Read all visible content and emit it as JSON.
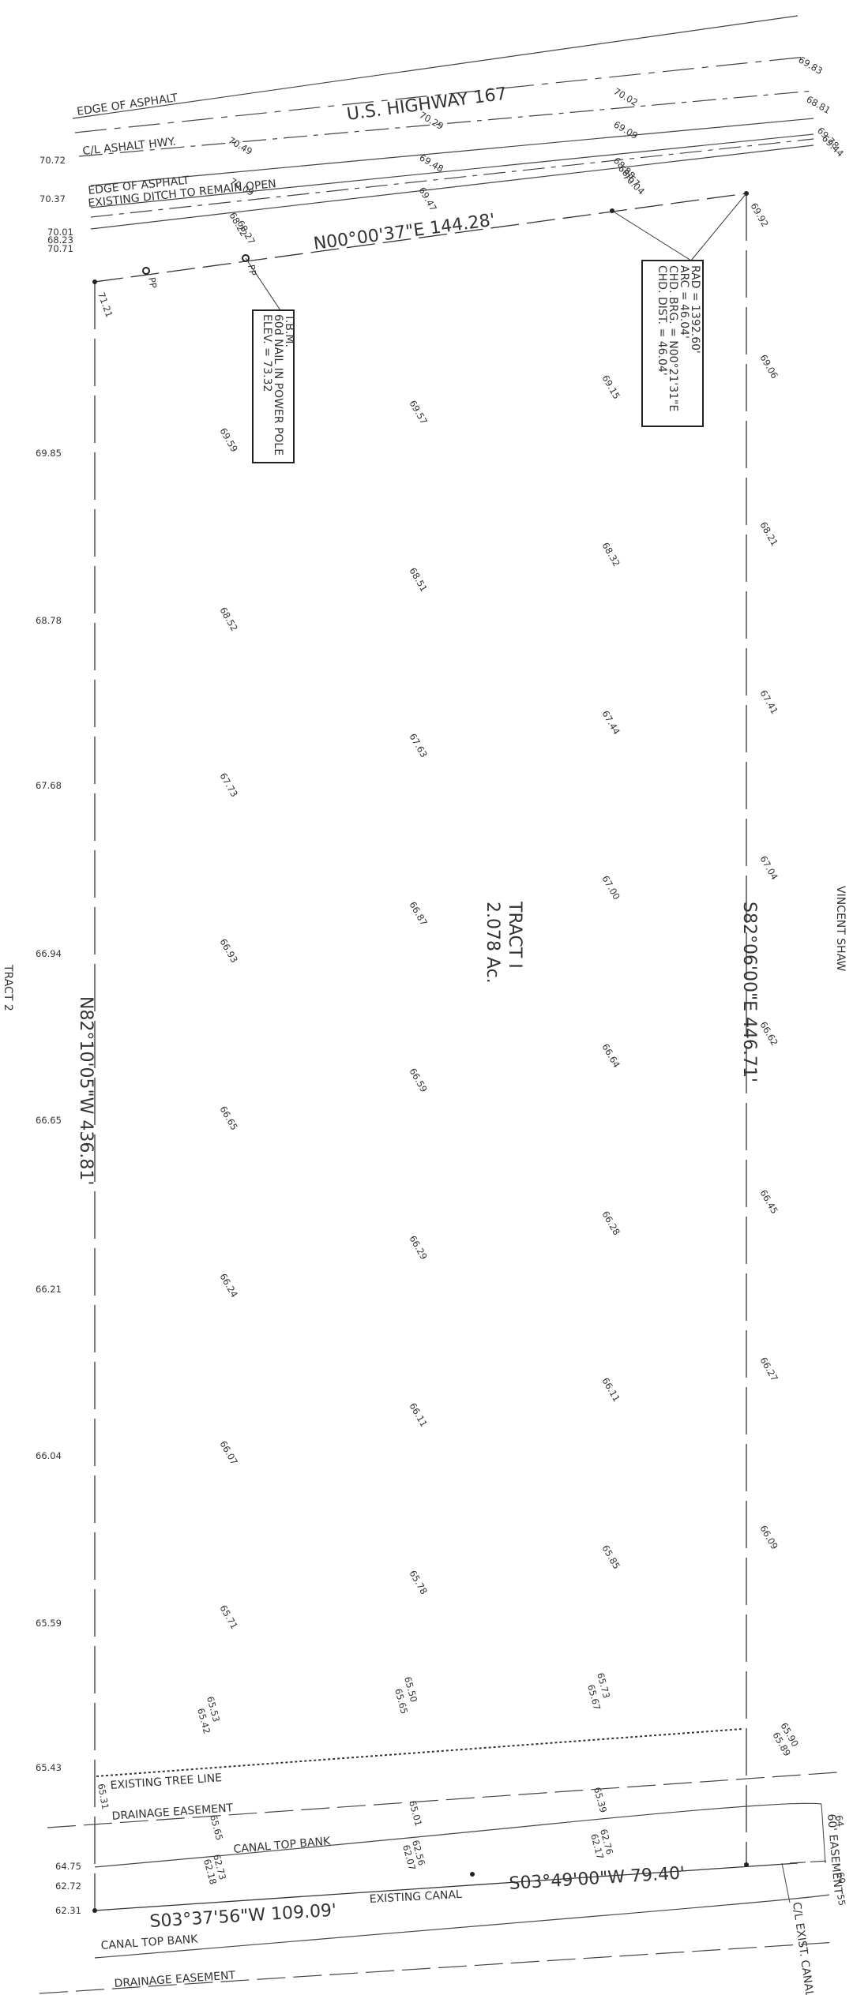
{
  "labels": {
    "highway": "U.S. HIGHWAY 167",
    "edge_asphalt_1": "EDGE OF ASPHALT",
    "cl_asphalt": "C/L ASHALT HWY.",
    "edge_asphalt_2": "EDGE OF ASPHALT",
    "ditch": "EXISTING DITCH TO REMAIN OPEN",
    "north_bearing": "N00°00'37\"E   144.28'",
    "east_bearing": "S82°06'00\"E   446.71'",
    "west_bearing": "N82°10'05\"W   436.81'",
    "south_bearing_1": "S03°37'56\"W   109.09'",
    "south_bearing_2": "S03°49'00\"W   79.40'",
    "tract_name": "TRACT I",
    "tract_area": "2.078 Ac.",
    "tract_2": "TRACT 2",
    "vincent": "VINCENT SHAW",
    "tree_line": "EXISTING TREE LINE",
    "drainage_1": "DRAINAGE EASEMENT",
    "drainage_2": "DRAINAGE EASEMENT",
    "canal_top_1": "CANAL TOP BANK",
    "canal_top_2": "CANAL TOP BANK",
    "existing_canal": "EXISTING CANAL",
    "easement_right": "60' EASEMENT",
    "cl_canal": "C/L EXIST. CANAL",
    "pp1": "PP",
    "pp2": "PP"
  },
  "tbm_box": [
    "T.B.M.",
    "60d NAIL IN POWER POLE",
    "ELEV. = 73.32"
  ],
  "curve_box": [
    "RAD = 1392.60'",
    "ARC = 46.04'",
    "CHD. BRG. = N00°21'31\"E",
    "CHD. DIST. = 46.04'"
  ],
  "west_elevations": [
    "70.72",
    "70.37",
    "70.01",
    "68.23",
    "70.71",
    "69.85",
    "68.78",
    "67.68",
    "66.94",
    "66.65",
    "66.21",
    "66.04",
    "65.59",
    "65.43",
    "64.75",
    "62.72",
    "62.31"
  ],
  "road_elevations": [
    "69.83",
    "68.81",
    "70.02",
    "70.29",
    "70.49",
    "69.09",
    "69.48",
    "70.09",
    "68.88",
    "68.67",
    "70.04",
    "69.47",
    "68.22",
    "68.27",
    "69.78",
    "69.44",
    "69.92",
    "71.21"
  ],
  "grid_elevations": [
    "69.59",
    "69.57",
    "69.15",
    "69.06",
    "68.52",
    "68.51",
    "68.32",
    "68.21",
    "67.73",
    "67.63",
    "67.44",
    "67.41",
    "66.93",
    "66.87",
    "67.00",
    "67.04",
    "66.65",
    "66.59",
    "66.64",
    "66.62",
    "66.24",
    "66.29",
    "66.28",
    "66.45",
    "66.07",
    "66.11",
    "66.11",
    "66.27",
    "65.71",
    "65.78",
    "65.85",
    "66.09"
  ],
  "bank_elevations": [
    "65.53",
    "65.42",
    "65.50",
    "65.65",
    "65.73",
    "65.67",
    "65.90",
    "65.89",
    "65.31",
    "65.65",
    "65.01",
    "65.39",
    "62.73",
    "62.18",
    "62.56",
    "62.07",
    "62.76",
    "62.17",
    "64",
    "60",
    "55"
  ]
}
